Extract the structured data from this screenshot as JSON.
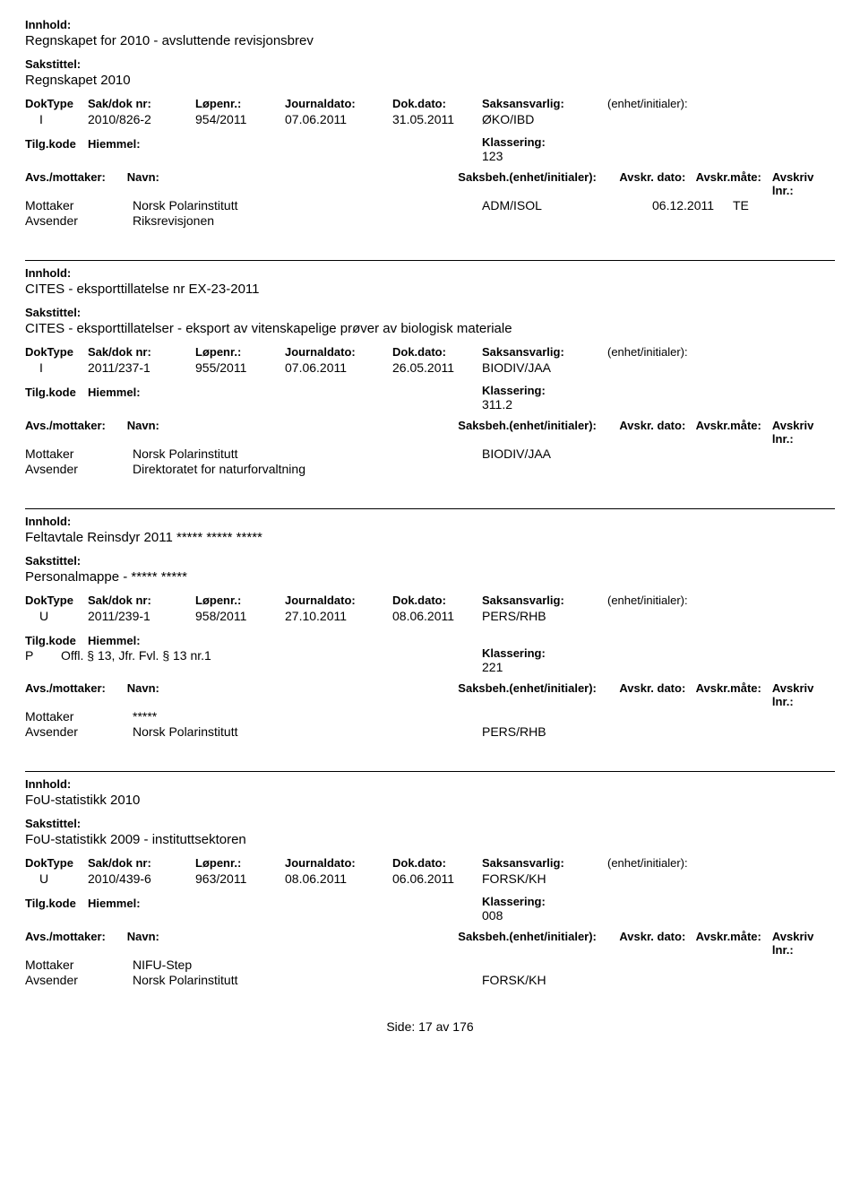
{
  "labels": {
    "innhold": "Innhold:",
    "sakstittel": "Sakstittel:",
    "doktype": "DokType",
    "sakdok": "Sak/dok nr:",
    "lopenr": "Løpenr.:",
    "jdato": "Journaldato:",
    "ddato": "Dok.dato:",
    "ansvarlig": "Saksansvarlig:",
    "enhet": "(enhet/initialer):",
    "tilgkode": "Tilg.kode",
    "hjemmel": "Hiemmel:",
    "klassering": "Klassering:",
    "avs_mottaker": "Avs./mottaker:",
    "navn": "Navn:",
    "saksbeh": "Saksbeh.(enhet/initialer):",
    "avskr_dato": "Avskr. dato:",
    "avskr_mate": "Avskr.måte:",
    "avskriv_lnr": "Avskriv lnr.:",
    "mottaker": "Mottaker",
    "avsender": "Avsender"
  },
  "records": [
    {
      "innhold": "Regnskapet for 2010 - avsluttende revisjonsbrev",
      "sakstittel": "Regnskapet 2010",
      "doktype": "I",
      "sakdok": "2010/826-2",
      "lopenr": "954/2011",
      "jdato": "07.06.2011",
      "ddato": "31.05.2011",
      "ansvarlig": "ØKO/IBD",
      "tilgkode": "",
      "hjemmel": "",
      "klassering": "123",
      "parties": [
        {
          "role": "Mottaker",
          "navn": "Norsk Polarinstitutt",
          "saksbeh": "ADM/ISOL",
          "avskr_dato": "06.12.2011",
          "avskr_mate": "TE"
        },
        {
          "role": "Avsender",
          "navn": "Riksrevisjonen",
          "saksbeh": "",
          "avskr_dato": "",
          "avskr_mate": ""
        }
      ]
    },
    {
      "innhold": "CITES - eksporttillatelse nr EX-23-2011",
      "sakstittel": "CITES - eksporttillatelser - eksport av vitenskapelige prøver av biologisk materiale",
      "doktype": "I",
      "sakdok": "2011/237-1",
      "lopenr": "955/2011",
      "jdato": "07.06.2011",
      "ddato": "26.05.2011",
      "ansvarlig": "BIODIV/JAA",
      "tilgkode": "",
      "hjemmel": "",
      "klassering": "311.2",
      "parties": [
        {
          "role": "Mottaker",
          "navn": "Norsk Polarinstitutt",
          "saksbeh": "BIODIV/JAA",
          "avskr_dato": "",
          "avskr_mate": ""
        },
        {
          "role": "Avsender",
          "navn": "Direktoratet for naturforvaltning",
          "saksbeh": "",
          "avskr_dato": "",
          "avskr_mate": ""
        }
      ]
    },
    {
      "innhold": "Feltavtale Reinsdyr 2011 ***** ***** *****",
      "sakstittel": "Personalmappe - ***** *****",
      "doktype": "U",
      "sakdok": "2011/239-1",
      "lopenr": "958/2011",
      "jdato": "27.10.2011",
      "ddato": "08.06.2011",
      "ansvarlig": "PERS/RHB",
      "tilgkode": "P",
      "hjemmel": "Offl. § 13, Jfr. Fvl. § 13 nr.1",
      "klassering": "221",
      "parties": [
        {
          "role": "Mottaker",
          "navn": "*****",
          "saksbeh": "",
          "avskr_dato": "",
          "avskr_mate": ""
        },
        {
          "role": "Avsender",
          "navn": "Norsk Polarinstitutt",
          "saksbeh": "PERS/RHB",
          "avskr_dato": "",
          "avskr_mate": ""
        }
      ]
    },
    {
      "innhold": "FoU-statistikk 2010",
      "sakstittel": "FoU-statistikk 2009 - instituttsektoren",
      "doktype": "U",
      "sakdok": "2010/439-6",
      "lopenr": "963/2011",
      "jdato": "08.06.2011",
      "ddato": "06.06.2011",
      "ansvarlig": "FORSK/KH",
      "tilgkode": "",
      "hjemmel": "",
      "klassering": "008",
      "parties": [
        {
          "role": "Mottaker",
          "navn": "NIFU-Step",
          "saksbeh": "",
          "avskr_dato": "",
          "avskr_mate": ""
        },
        {
          "role": "Avsender",
          "navn": "Norsk Polarinstitutt",
          "saksbeh": "FORSK/KH",
          "avskr_dato": "",
          "avskr_mate": ""
        }
      ]
    }
  ],
  "footer": {
    "prefix": "Side:",
    "page": "17",
    "mid": "av",
    "total": "176"
  }
}
